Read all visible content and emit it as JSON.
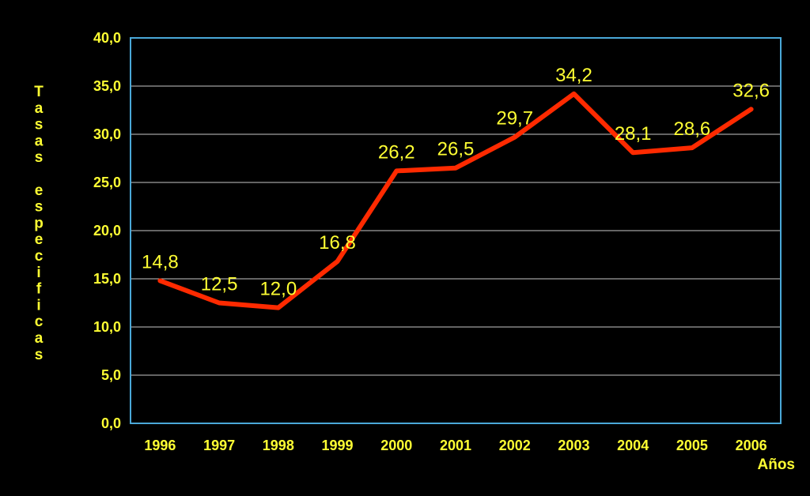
{
  "chart_data": {
    "type": "line",
    "xlabel": "Años",
    "ylabel": "Tasas especificas",
    "categories": [
      "1996",
      "1997",
      "1998",
      "1999",
      "2000",
      "2001",
      "2002",
      "2003",
      "2004",
      "2005",
      "2006"
    ],
    "values": [
      14.8,
      12.5,
      12.0,
      16.8,
      26.2,
      26.5,
      29.7,
      34.2,
      28.1,
      28.6,
      32.6
    ],
    "data_labels": [
      "14,8",
      "12,5",
      "12,0",
      "16,8",
      "26,2",
      "26,5",
      "29,7",
      "34,2",
      "28,1",
      "28,6",
      "32,6"
    ],
    "y_ticks": [
      "0,0",
      "5,0",
      "10,0",
      "15,0",
      "20,0",
      "25,0",
      "30,0",
      "35,0",
      "40,0"
    ],
    "ylim": [
      0,
      40
    ],
    "grid": true,
    "colors": {
      "background": "#000000",
      "line": "#ff2a00",
      "text": "#ffff33",
      "frame": "#4aa8d8",
      "grid": "#c8c8c8"
    }
  }
}
